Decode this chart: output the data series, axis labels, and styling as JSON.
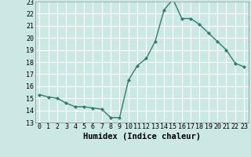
{
  "x": [
    0,
    1,
    2,
    3,
    4,
    5,
    6,
    7,
    8,
    9,
    10,
    11,
    12,
    13,
    14,
    15,
    16,
    17,
    18,
    19,
    20,
    21,
    22,
    23
  ],
  "y": [
    15.3,
    15.1,
    15.0,
    14.6,
    14.3,
    14.3,
    14.2,
    14.1,
    13.4,
    13.4,
    16.5,
    17.7,
    18.3,
    19.7,
    22.3,
    23.2,
    21.6,
    21.6,
    21.1,
    20.4,
    19.7,
    19.0,
    17.9,
    17.6
  ],
  "xlabel": "Humidex (Indice chaleur)",
  "xlim": [
    -0.5,
    23.5
  ],
  "ylim": [
    13,
    23
  ],
  "yticks": [
    13,
    14,
    15,
    16,
    17,
    18,
    19,
    20,
    21,
    22,
    23
  ],
  "xticks": [
    0,
    1,
    2,
    3,
    4,
    5,
    6,
    7,
    8,
    9,
    10,
    11,
    12,
    13,
    14,
    15,
    16,
    17,
    18,
    19,
    20,
    21,
    22,
    23
  ],
  "line_color": "#2e7d6e",
  "marker": "D",
  "marker_size": 2.0,
  "bg_color": "#cce8e4",
  "grid_color": "#ffffff",
  "xlabel_fontsize": 7.5,
  "tick_fontsize": 6.0,
  "linewidth": 1.0
}
